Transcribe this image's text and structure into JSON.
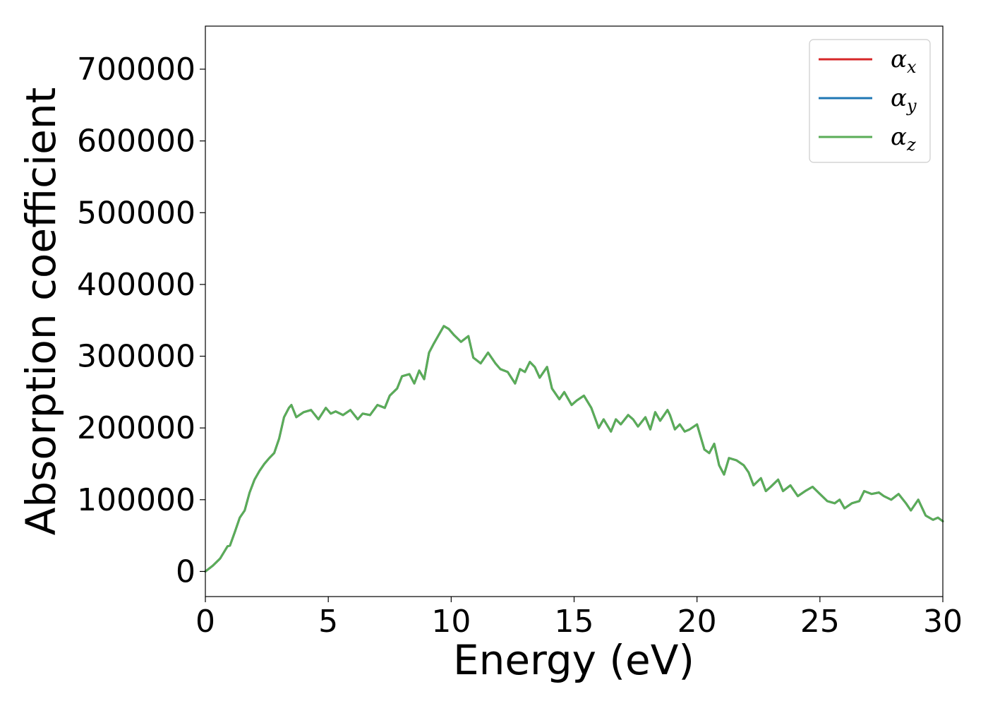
{
  "chart_data": {
    "type": "line",
    "xlabel": "Energy (eV)",
    "ylabel": "Absorption coefficient",
    "xlim": [
      0,
      30
    ],
    "ylim": [
      -35000,
      760000
    ],
    "xticks": [
      0,
      5,
      10,
      15,
      20,
      25,
      30
    ],
    "xtick_labels": [
      "0",
      "5",
      "10",
      "15",
      "20",
      "25",
      "30"
    ],
    "yticks": [
      0,
      100000,
      200000,
      300000,
      400000,
      500000,
      600000,
      700000
    ],
    "ytick_labels": [
      "0",
      "100000",
      "200000",
      "300000",
      "400000",
      "500000",
      "600000",
      "700000"
    ],
    "grid": false,
    "legend_position": "top-right",
    "x": [
      0,
      0.3,
      0.6,
      0.9,
      1.0,
      1.2,
      1.4,
      1.6,
      1.8,
      2.0,
      2.2,
      2.4,
      2.6,
      2.8,
      3.0,
      3.2,
      3.4,
      3.5,
      3.7,
      4.0,
      4.3,
      4.6,
      4.9,
      5.1,
      5.3,
      5.6,
      5.9,
      6.2,
      6.4,
      6.7,
      7.0,
      7.3,
      7.5,
      7.8,
      8.0,
      8.3,
      8.5,
      8.7,
      8.9,
      9.1,
      9.3,
      9.5,
      9.7,
      9.9,
      10.1,
      10.4,
      10.7,
      10.9,
      11.2,
      11.5,
      11.8,
      12.0,
      12.3,
      12.6,
      12.8,
      13.0,
      13.2,
      13.4,
      13.6,
      13.9,
      14.1,
      14.4,
      14.6,
      14.9,
      15.1,
      15.4,
      15.7,
      16.0,
      16.2,
      16.5,
      16.7,
      16.9,
      17.2,
      17.4,
      17.6,
      17.9,
      18.1,
      18.3,
      18.5,
      18.8,
      18.9,
      19.1,
      19.3,
      19.5,
      19.7,
      20.0,
      20.3,
      20.5,
      20.7,
      20.9,
      21.1,
      21.3,
      21.6,
      21.9,
      22.1,
      22.3,
      22.6,
      22.8,
      23.0,
      23.3,
      23.5,
      23.8,
      24.1,
      24.4,
      24.7,
      25.0,
      25.3,
      25.6,
      25.8,
      26.0,
      26.3,
      26.6,
      26.8,
      27.1,
      27.4,
      27.6,
      27.9,
      28.2,
      28.5,
      28.7,
      29.0,
      29.3,
      29.6,
      29.8,
      30.0
    ],
    "series": [
      {
        "name": "α_x",
        "color": "#d62728",
        "values": [
          0,
          8000,
          18000,
          35000,
          36000,
          55000,
          75000,
          85000,
          110000,
          128000,
          140000,
          150000,
          158000,
          165000,
          185000,
          215000,
          228000,
          232000,
          215000,
          222000,
          225000,
          212000,
          228000,
          220000,
          223000,
          218000,
          225000,
          212000,
          220000,
          218000,
          232000,
          228000,
          245000,
          255000,
          272000,
          275000,
          262000,
          280000,
          268000,
          305000,
          318000,
          330000,
          342000,
          338000,
          330000,
          320000,
          328000,
          298000,
          290000,
          305000,
          290000,
          282000,
          278000,
          262000,
          282000,
          278000,
          292000,
          285000,
          270000,
          285000,
          255000,
          240000,
          250000,
          232000,
          238000,
          245000,
          228000,
          200000,
          212000,
          195000,
          212000,
          205000,
          218000,
          212000,
          202000,
          215000,
          198000,
          222000,
          210000,
          225000,
          218000,
          198000,
          205000,
          195000,
          198000,
          205000,
          170000,
          165000,
          178000,
          148000,
          135000,
          158000,
          155000,
          148000,
          138000,
          120000,
          130000,
          112000,
          118000,
          128000,
          112000,
          120000,
          105000,
          112000,
          118000,
          108000,
          98000,
          95000,
          100000,
          88000,
          95000,
          98000,
          112000,
          108000,
          110000,
          105000,
          100000,
          108000,
          95000,
          85000,
          100000,
          78000,
          72000,
          75000,
          70000
        ]
      },
      {
        "name": "α_y",
        "color": "#1f77b4",
        "values": [
          0,
          8000,
          18000,
          35000,
          36000,
          55000,
          75000,
          85000,
          110000,
          128000,
          140000,
          150000,
          158000,
          165000,
          185000,
          215000,
          228000,
          232000,
          215000,
          222000,
          225000,
          212000,
          228000,
          220000,
          223000,
          218000,
          225000,
          212000,
          220000,
          218000,
          232000,
          228000,
          245000,
          255000,
          272000,
          275000,
          262000,
          280000,
          268000,
          305000,
          318000,
          330000,
          342000,
          338000,
          330000,
          320000,
          328000,
          298000,
          290000,
          305000,
          290000,
          282000,
          278000,
          262000,
          282000,
          278000,
          292000,
          285000,
          270000,
          285000,
          255000,
          240000,
          250000,
          232000,
          238000,
          245000,
          228000,
          200000,
          212000,
          195000,
          212000,
          205000,
          218000,
          212000,
          202000,
          215000,
          198000,
          222000,
          210000,
          225000,
          218000,
          198000,
          205000,
          195000,
          198000,
          205000,
          170000,
          165000,
          178000,
          148000,
          135000,
          158000,
          155000,
          148000,
          138000,
          120000,
          130000,
          112000,
          118000,
          128000,
          112000,
          120000,
          105000,
          112000,
          118000,
          108000,
          98000,
          95000,
          100000,
          88000,
          95000,
          98000,
          112000,
          108000,
          110000,
          105000,
          100000,
          108000,
          95000,
          85000,
          100000,
          78000,
          72000,
          75000,
          70000
        ]
      },
      {
        "name": "α_z",
        "color": "#5aad57",
        "values": [
          0,
          8000,
          18000,
          35000,
          36000,
          55000,
          75000,
          85000,
          110000,
          128000,
          140000,
          150000,
          158000,
          165000,
          185000,
          215000,
          228000,
          232000,
          215000,
          222000,
          225000,
          212000,
          228000,
          220000,
          223000,
          218000,
          225000,
          212000,
          220000,
          218000,
          232000,
          228000,
          245000,
          255000,
          272000,
          275000,
          262000,
          280000,
          268000,
          305000,
          318000,
          330000,
          342000,
          338000,
          330000,
          320000,
          328000,
          298000,
          290000,
          305000,
          290000,
          282000,
          278000,
          262000,
          282000,
          278000,
          292000,
          285000,
          270000,
          285000,
          255000,
          240000,
          250000,
          232000,
          238000,
          245000,
          228000,
          200000,
          212000,
          195000,
          212000,
          205000,
          218000,
          212000,
          202000,
          215000,
          198000,
          222000,
          210000,
          225000,
          218000,
          198000,
          205000,
          195000,
          198000,
          205000,
          170000,
          165000,
          178000,
          148000,
          135000,
          158000,
          155000,
          148000,
          138000,
          120000,
          130000,
          112000,
          118000,
          128000,
          112000,
          120000,
          105000,
          112000,
          118000,
          108000,
          98000,
          95000,
          100000,
          88000,
          95000,
          98000,
          112000,
          108000,
          110000,
          105000,
          100000,
          108000,
          95000,
          85000,
          100000,
          78000,
          72000,
          75000,
          70000
        ]
      }
    ],
    "legend_entries": [
      {
        "base": "α",
        "sub": "x",
        "color": "#d62728"
      },
      {
        "base": "α",
        "sub": "y",
        "color": "#1f77b4"
      },
      {
        "base": "α",
        "sub": "z",
        "color": "#5aad57"
      }
    ]
  }
}
